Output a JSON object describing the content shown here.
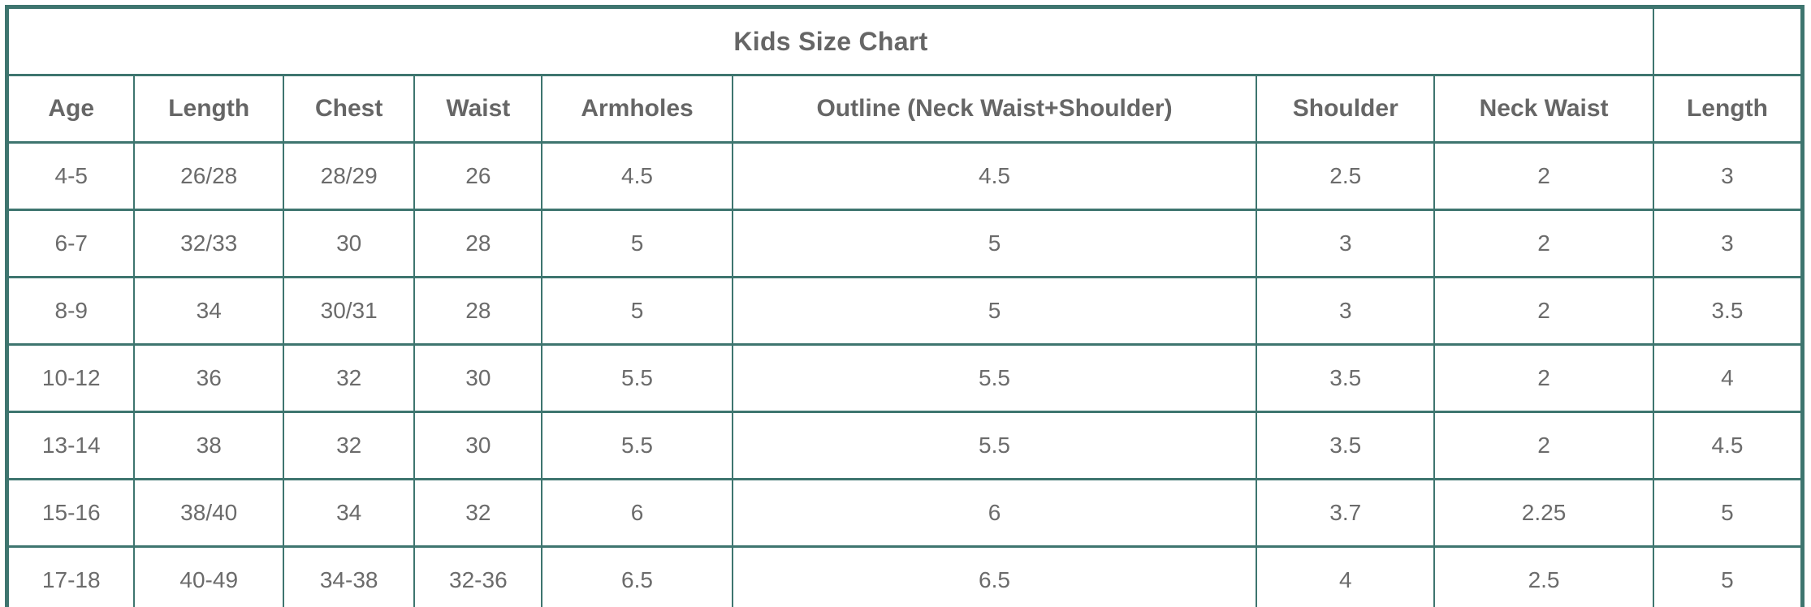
{
  "colors": {
    "border": "#3E756F",
    "title_text": "#666666",
    "header_text": "#666666",
    "cell_text": "#6B6B6B",
    "background": "#FFFFFF"
  },
  "chart_data": {
    "type": "table",
    "title": "Kids Size Chart",
    "columns": [
      "Age",
      "Length",
      "Chest",
      "Waist",
      "Armholes",
      "Outline (Neck Waist+Shoulder)",
      "Shoulder",
      "Neck Waist",
      "Length"
    ],
    "rows": [
      [
        "4-5",
        "26/28",
        "28/29",
        "26",
        "4.5",
        "4.5",
        "2.5",
        "2",
        "3"
      ],
      [
        "6-7",
        "32/33",
        "30",
        "28",
        "5",
        "5",
        "3",
        "2",
        "3"
      ],
      [
        "8-9",
        "34",
        "30/31",
        "28",
        "5",
        "5",
        "3",
        "2",
        "3.5"
      ],
      [
        "10-12",
        "36",
        "32",
        "30",
        "5.5",
        "5.5",
        "3.5",
        "2",
        "4"
      ],
      [
        "13-14",
        "38",
        "32",
        "30",
        "5.5",
        "5.5",
        "3.5",
        "2",
        "4.5"
      ],
      [
        "15-16",
        "38/40",
        "34",
        "32",
        "6",
        "6",
        "3.7",
        "2.25",
        "5"
      ],
      [
        "17-18",
        "40-49",
        "34-38",
        "32-36",
        "6.5",
        "6.5",
        "4",
        "2.5",
        "5"
      ]
    ],
    "layout_hints": {
      "title_colspan": 8,
      "title_row_has_trailing_empty_cell": true,
      "grid": "full-borders",
      "text_alignment": "center"
    }
  }
}
